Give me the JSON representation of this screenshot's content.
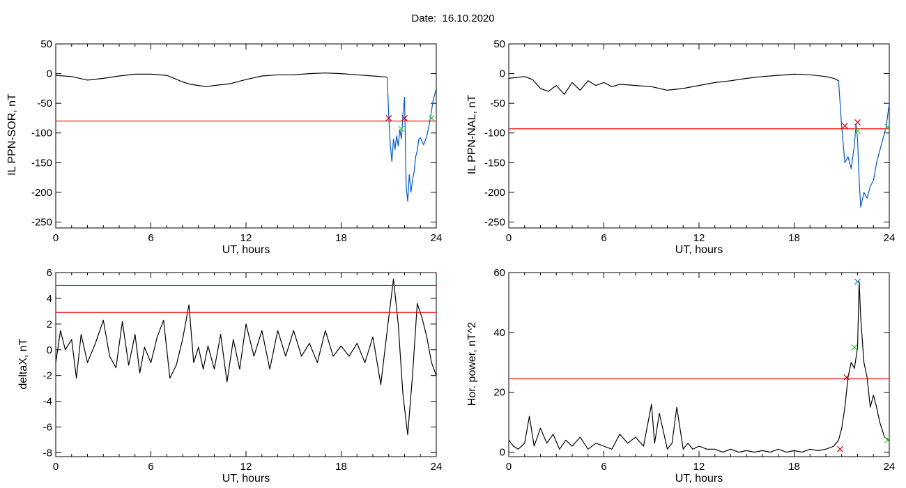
{
  "page": {
    "title": "Date:  16.10.2020"
  },
  "chart_data": [
    {
      "type": "line",
      "title": "",
      "xlabel": "UT, hours",
      "ylabel": "IL PPN-SOR, nT",
      "xlim": [
        0,
        24
      ],
      "ylim": [
        -260,
        50
      ],
      "xticks": [
        0,
        6,
        12,
        18,
        24
      ],
      "yticks": [
        50,
        0,
        -50,
        -100,
        -150,
        -200,
        -250
      ],
      "series": [
        {
          "color": "#000000",
          "x": [
            0,
            1,
            2,
            3,
            4,
            5,
            6,
            7,
            8,
            8.5,
            9,
            9.5,
            10,
            11,
            12,
            13,
            14,
            15,
            16,
            17,
            18,
            19,
            20,
            20.5,
            20.9
          ],
          "y": [
            -3,
            -5,
            -11,
            -8,
            -4,
            -1,
            -1,
            -3,
            -14,
            -18,
            -20,
            -22,
            -20,
            -17,
            -10,
            -4,
            -2,
            -2,
            0,
            1,
            0,
            -2,
            -4,
            -5,
            -6
          ]
        },
        {
          "color": "#0055cc",
          "x": [
            20.9,
            21.0,
            21.1,
            21.2,
            21.3,
            21.4,
            21.5,
            21.6,
            21.7,
            21.8,
            21.9,
            22.0,
            22.1,
            22.2,
            22.3,
            22.4,
            22.5,
            22.6,
            22.7,
            22.8,
            22.9,
            23.0,
            23.2,
            23.4,
            23.6,
            23.8,
            24.0
          ],
          "y": [
            -6,
            -70,
            -120,
            -148,
            -110,
            -128,
            -105,
            -122,
            -94,
            -110,
            -68,
            -40,
            -190,
            -215,
            -170,
            -200,
            -180,
            -165,
            -140,
            -130,
            -110,
            -108,
            -120,
            -105,
            -80,
            -45,
            -25
          ]
        }
      ],
      "hlines": [
        {
          "y": -80,
          "color": "#ff0000"
        }
      ],
      "markers": [
        {
          "x": 21.0,
          "y": -75,
          "color": "#cc0000"
        },
        {
          "x": 21.8,
          "y": -93,
          "color": "#33cc33"
        },
        {
          "x": 22.0,
          "y": -75,
          "color": "#cc0000"
        },
        {
          "x": 23.7,
          "y": -75,
          "color": "#33cc33"
        }
      ],
      "grid": false
    },
    {
      "type": "line",
      "title": "",
      "xlabel": "UT, hours",
      "ylabel": "IL PPN-NAL, nT",
      "xlim": [
        0,
        24
      ],
      "ylim": [
        -260,
        50
      ],
      "xticks": [
        0,
        6,
        12,
        18,
        24
      ],
      "yticks": [
        50,
        0,
        -50,
        -100,
        -150,
        -200,
        -250
      ],
      "series": [
        {
          "color": "#000000",
          "x": [
            0,
            1,
            1.5,
            2,
            2.5,
            3,
            3.5,
            4,
            4.5,
            5,
            5.5,
            6,
            6.5,
            7,
            8,
            9,
            10,
            11,
            12,
            13,
            14,
            15,
            16,
            17,
            18,
            19,
            20,
            20.5,
            20.8
          ],
          "y": [
            -8,
            -5,
            -10,
            -25,
            -30,
            -20,
            -35,
            -15,
            -28,
            -12,
            -20,
            -15,
            -22,
            -18,
            -20,
            -22,
            -28,
            -25,
            -20,
            -15,
            -12,
            -8,
            -5,
            -3,
            -1,
            -2,
            -5,
            -8,
            -12
          ]
        },
        {
          "color": "#0055cc",
          "x": [
            20.8,
            21.0,
            21.2,
            21.4,
            21.6,
            21.8,
            21.9,
            22.0,
            22.1,
            22.2,
            22.4,
            22.6,
            22.8,
            23.0,
            23.2,
            23.4,
            23.6,
            23.8,
            24.0
          ],
          "y": [
            -12,
            -90,
            -150,
            -140,
            -160,
            -120,
            -85,
            -110,
            -180,
            -225,
            -200,
            -210,
            -190,
            -180,
            -150,
            -130,
            -110,
            -90,
            -50
          ]
        }
      ],
      "hlines": [
        {
          "y": -93,
          "color": "#ff0000"
        }
      ],
      "markers": [
        {
          "x": 21.2,
          "y": -88,
          "color": "#cc0000"
        },
        {
          "x": 22.0,
          "y": -82,
          "color": "#cc0000"
        },
        {
          "x": 22.0,
          "y": -97,
          "color": "#33cc33"
        },
        {
          "x": 23.9,
          "y": -90,
          "color": "#33cc33"
        }
      ],
      "grid": false
    },
    {
      "type": "line",
      "title": "",
      "xlabel": "UT, hours",
      "ylabel": "deltaX, nT",
      "xlim": [
        0,
        24
      ],
      "ylim": [
        -8.3,
        6
      ],
      "xticks": [
        0,
        6,
        12,
        18,
        24
      ],
      "yticks": [
        6,
        4,
        2,
        0,
        -2,
        -4,
        -6,
        -8
      ],
      "series": [
        {
          "color": "#000000",
          "x": [
            0,
            0.3,
            0.6,
            1,
            1.3,
            1.6,
            2,
            2.5,
            3,
            3.4,
            3.8,
            4.2,
            4.6,
            5,
            5.3,
            5.6,
            6,
            6.4,
            6.8,
            7.2,
            7.6,
            8,
            8.4,
            8.7,
            9,
            9.3,
            9.6,
            10,
            10.4,
            10.8,
            11.2,
            11.6,
            12,
            12.5,
            13,
            13.5,
            14,
            14.5,
            15,
            15.5,
            16,
            16.5,
            17,
            17.5,
            18,
            18.5,
            19,
            19.5,
            20,
            20.5,
            21,
            21.3,
            21.6,
            21.9,
            22.2,
            22.5,
            22.8,
            23.1,
            23.4,
            23.7,
            24
          ],
          "y": [
            -1,
            1.5,
            0,
            0.8,
            -2.2,
            1.2,
            -1,
            0.5,
            2.3,
            -0.5,
            -1.4,
            2.2,
            -1.2,
            1.2,
            -1.8,
            0.2,
            -1,
            1,
            2.3,
            -2.2,
            -1.2,
            0.8,
            3.5,
            -1,
            0.2,
            -1.5,
            0.3,
            -1.5,
            1.2,
            -2.5,
            0.8,
            -1.5,
            2,
            -0.5,
            1.5,
            -1.5,
            1.5,
            -0.5,
            1.5,
            -0.5,
            0.5,
            -1,
            1.5,
            -0.5,
            0.3,
            -0.5,
            0.5,
            -1,
            1,
            -2.7,
            2.5,
            5.5,
            2,
            -3.5,
            -6.6,
            -2,
            3.6,
            2.5,
            1,
            -1,
            -2
          ]
        }
      ],
      "hlines": [
        {
          "y": 5.0,
          "color": "#008080"
        },
        {
          "y": 2.9,
          "color": "#ff0000"
        }
      ],
      "markers": [],
      "grid": false
    },
    {
      "type": "line",
      "title": "",
      "xlabel": "UT, hours",
      "ylabel": "Hor. power, nT^2",
      "xlim": [
        0,
        24
      ],
      "ylim": [
        -1.5,
        60
      ],
      "xticks": [
        0,
        6,
        12,
        18,
        24
      ],
      "yticks": [
        60,
        40,
        20,
        0
      ],
      "series": [
        {
          "color": "#000000",
          "x": [
            0,
            0.3,
            0.6,
            1,
            1.3,
            1.6,
            2,
            2.4,
            2.8,
            3.2,
            3.6,
            4,
            4.5,
            5,
            5.5,
            6,
            6.5,
            7,
            7.5,
            8,
            8.5,
            9,
            9.2,
            9.5,
            10,
            10.3,
            10.6,
            11,
            11.3,
            11.6,
            12,
            12.5,
            13,
            13.5,
            14,
            14.5,
            15,
            15.5,
            16,
            16.5,
            17,
            17.5,
            18,
            18.5,
            19,
            19.5,
            20,
            20.5,
            20.8,
            21,
            21.2,
            21.4,
            21.6,
            21.8,
            22,
            22.1,
            22.2,
            22.4,
            22.6,
            22.8,
            23,
            23.2,
            23.4,
            23.7,
            24
          ],
          "y": [
            4,
            2,
            1,
            3,
            12,
            2,
            8,
            3,
            6,
            1,
            4,
            2,
            5,
            1,
            3,
            2,
            1,
            6,
            3,
            5,
            2,
            16,
            3,
            13,
            1,
            3,
            15,
            1,
            3,
            1,
            2,
            1,
            1,
            0,
            1,
            0,
            0.5,
            0,
            0.5,
            0,
            1,
            0,
            0.5,
            0,
            1,
            0.5,
            1,
            2,
            4,
            8,
            15,
            25,
            30,
            28,
            35,
            57,
            45,
            30,
            25,
            15,
            19,
            15,
            10,
            5,
            4
          ]
        }
      ],
      "hlines": [
        {
          "y": 24.5,
          "color": "#ff0000"
        }
      ],
      "markers": [
        {
          "x": 20.9,
          "y": 1,
          "color": "#cc0000"
        },
        {
          "x": 21.3,
          "y": 25,
          "color": "#cc0000"
        },
        {
          "x": 21.8,
          "y": 35,
          "color": "#33cc33"
        },
        {
          "x": 22.0,
          "y": 57,
          "color": "#1f77b4"
        },
        {
          "x": 23.9,
          "y": 4,
          "color": "#33cc33"
        }
      ],
      "grid": false
    }
  ]
}
